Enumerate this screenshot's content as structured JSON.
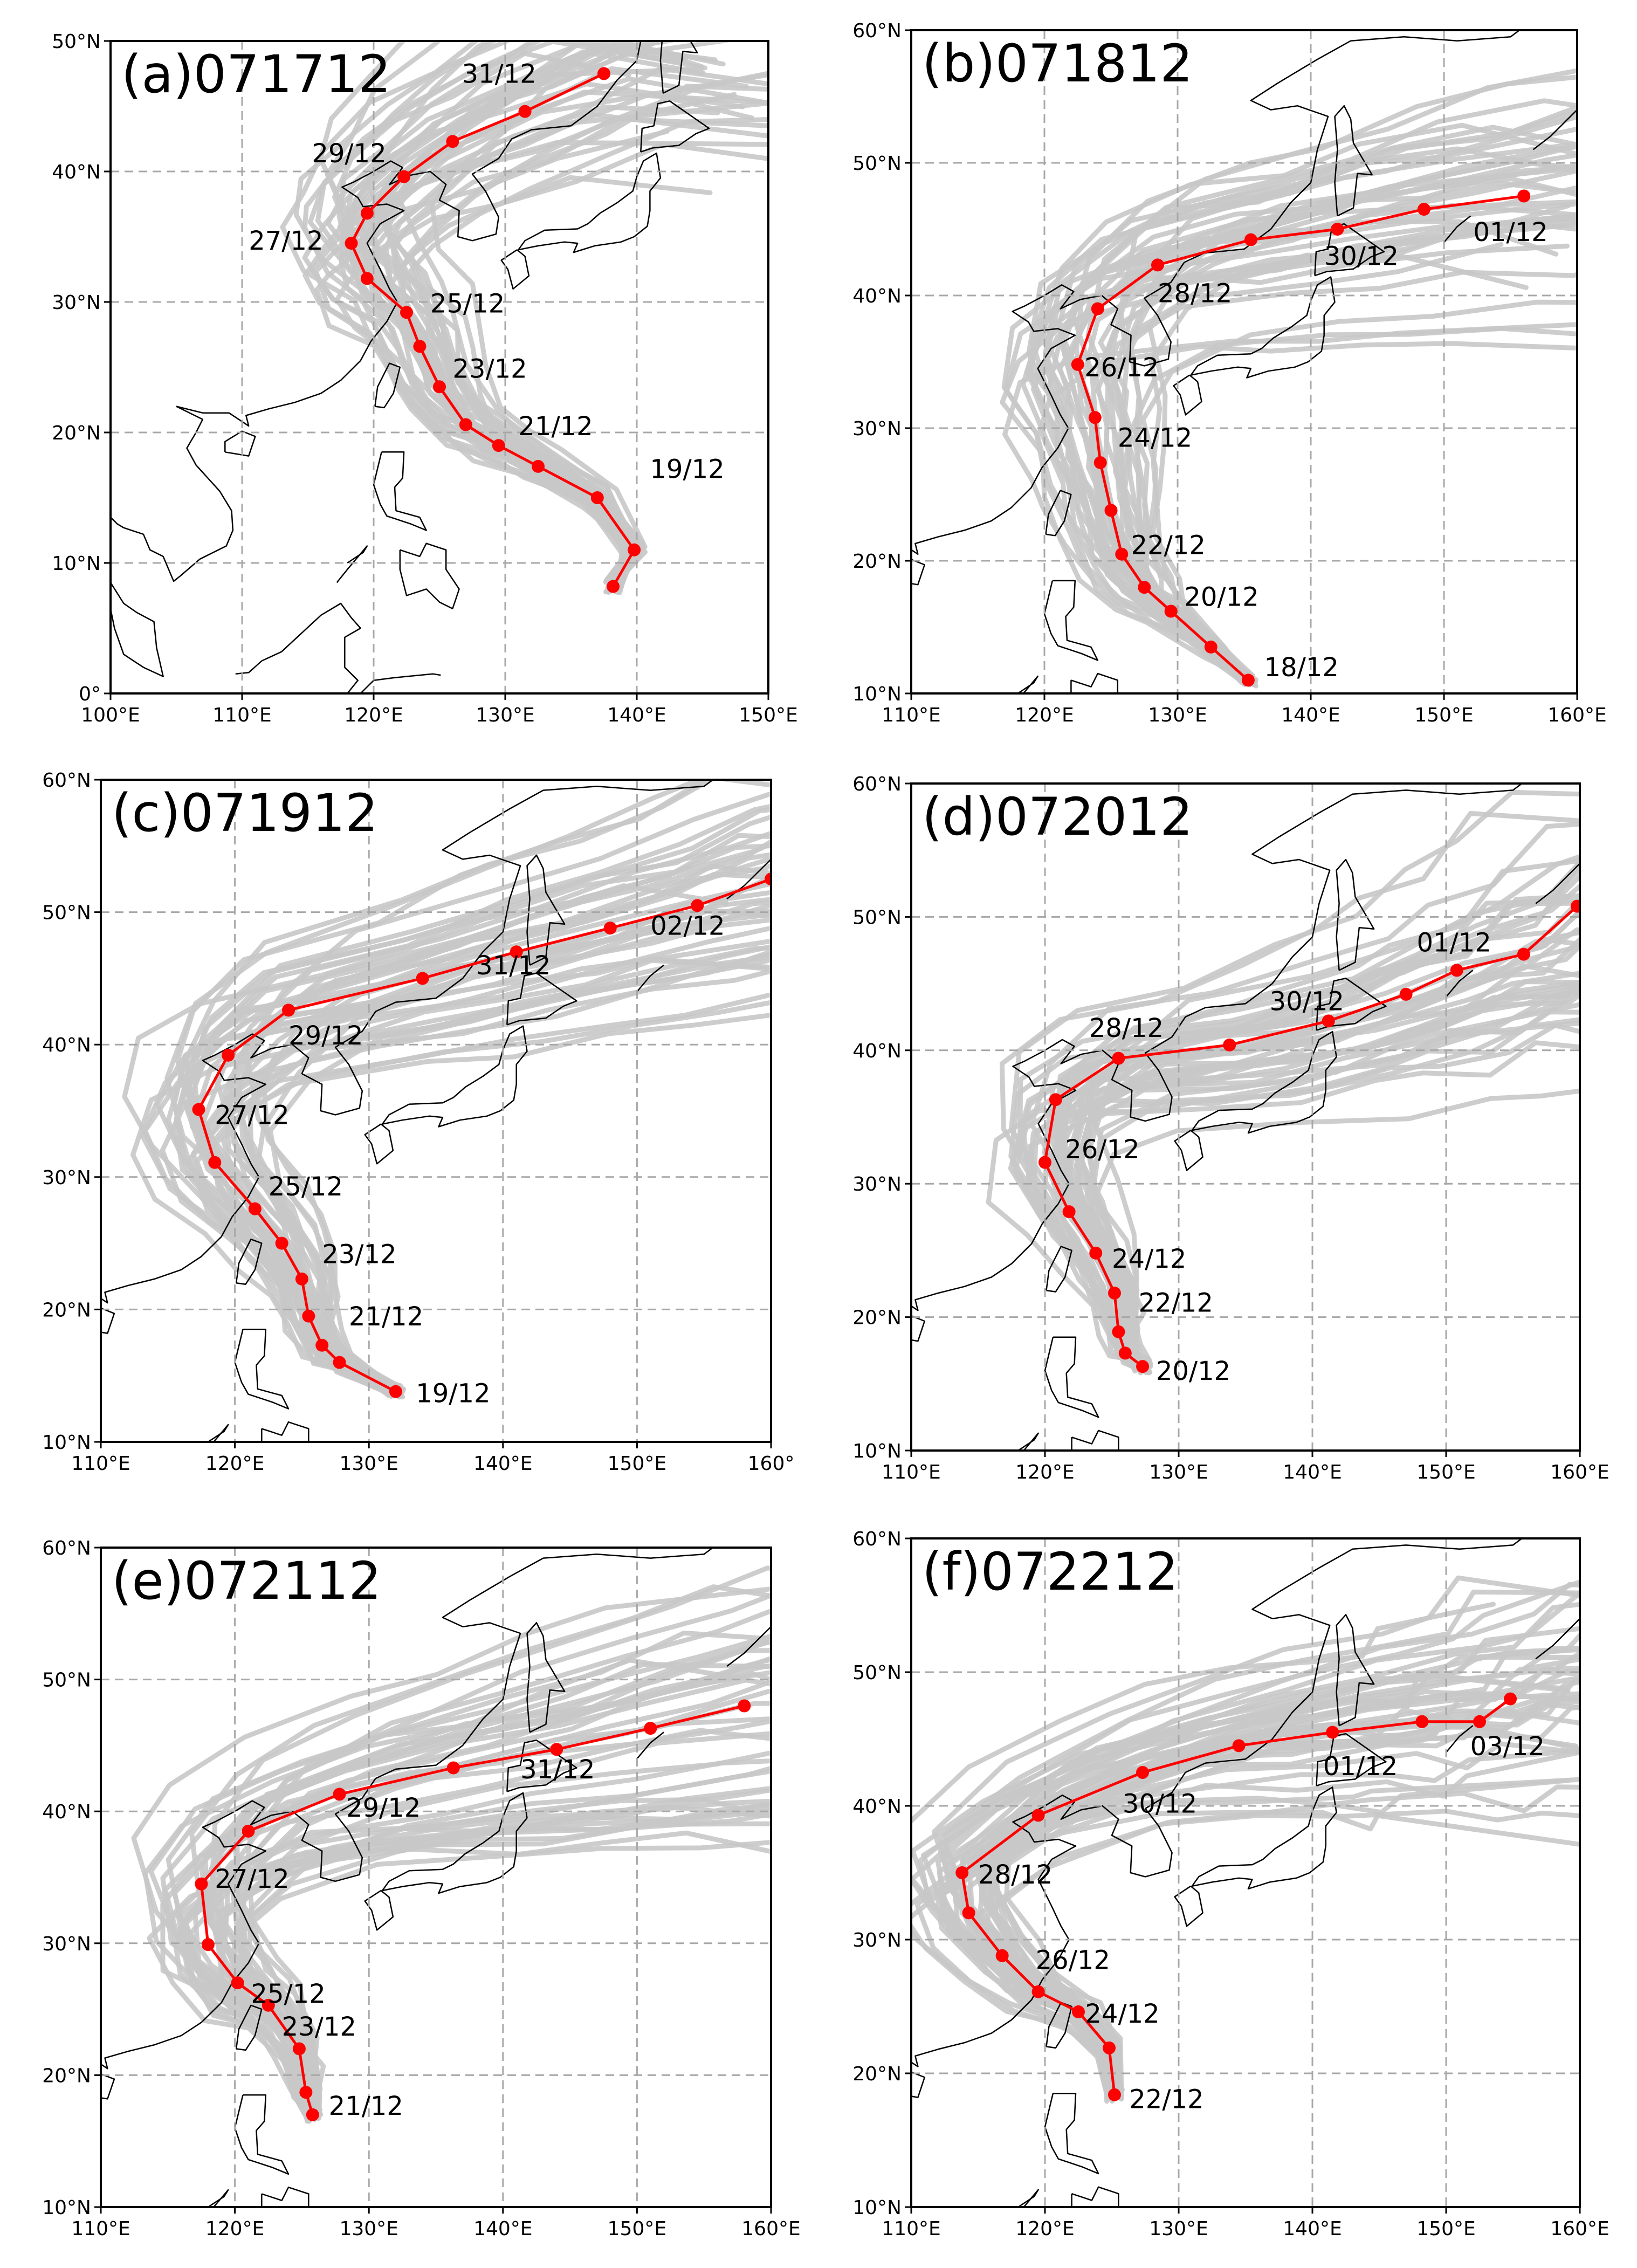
{
  "chart_data": [
    {
      "type": "line",
      "title": "(a)071712",
      "xlim": [
        100,
        150
      ],
      "ylim": [
        0,
        50
      ],
      "xticks": [
        100,
        110,
        120,
        130,
        140,
        150
      ],
      "yticks": [
        0,
        10,
        20,
        30,
        40,
        50
      ],
      "xtick_labels": [
        "100°E",
        "110°E",
        "120°E",
        "130°E",
        "140°E",
        "150°E"
      ],
      "ytick_labels": [
        "0°",
        "10°N",
        "20°N",
        "30°N",
        "40°N",
        "50°N"
      ],
      "grid": true,
      "track": {
        "lon": [
          138.2,
          139.8,
          137.0,
          132.5,
          129.5,
          127.0,
          125.0,
          123.5,
          122.5,
          119.5,
          118.3,
          119.5,
          122.3,
          126.0,
          131.5,
          137.5
        ],
        "lat": [
          8.2,
          11.0,
          15.0,
          17.4,
          19.0,
          20.6,
          23.5,
          26.6,
          29.2,
          31.8,
          34.5,
          36.8,
          39.6,
          42.3,
          44.6,
          47.5
        ]
      },
      "date_labels": [
        {
          "text": "19/12",
          "lon": 141,
          "lat": 16.5
        },
        {
          "text": "21/12",
          "lon": 131,
          "lat": 19.8
        },
        {
          "text": "23/12",
          "lon": 126,
          "lat": 24.2
        },
        {
          "text": "25/12",
          "lon": 124.3,
          "lat": 29.2
        },
        {
          "text": "27/12",
          "lon": 110.5,
          "lat": 34.0
        },
        {
          "text": "29/12",
          "lon": 115.3,
          "lat": 40.7
        },
        {
          "text": "31/12",
          "lon": 126.7,
          "lat": 46.8
        }
      ]
    },
    {
      "type": "line",
      "title": "(b)071812",
      "xlim": [
        110,
        160
      ],
      "ylim": [
        10,
        60
      ],
      "xticks": [
        110,
        120,
        130,
        140,
        150,
        160
      ],
      "yticks": [
        10,
        20,
        30,
        40,
        50,
        60
      ],
      "xtick_labels": [
        "110°E",
        "120°E",
        "130°E",
        "140°E",
        "150°E",
        "160°E"
      ],
      "ytick_labels": [
        "10°N",
        "20°N",
        "30°N",
        "40°N",
        "50°N",
        "60°N"
      ],
      "grid": true,
      "track": {
        "lon": [
          135.3,
          132.5,
          129.5,
          127.5,
          125.8,
          125.0,
          124.2,
          123.8,
          122.5,
          124.0,
          128.5,
          135.5,
          142.0,
          148.5,
          156.0
        ],
        "lat": [
          11.0,
          13.5,
          16.2,
          18.0,
          20.5,
          23.8,
          27.4,
          30.8,
          34.8,
          39.0,
          42.3,
          44.2,
          45.0,
          46.5,
          47.5
        ]
      },
      "date_labels": [
        {
          "text": "18/12",
          "lon": 136.5,
          "lat": 11.3
        },
        {
          "text": "20/12",
          "lon": 130.5,
          "lat": 16.6
        },
        {
          "text": "22/12",
          "lon": 126.5,
          "lat": 20.5
        },
        {
          "text": "24/12",
          "lon": 125.5,
          "lat": 28.6
        },
        {
          "text": "26/12",
          "lon": 123,
          "lat": 33.9
        },
        {
          "text": "28/12",
          "lon": 128.5,
          "lat": 39.5
        },
        {
          "text": "30/12",
          "lon": 141,
          "lat": 42.3
        },
        {
          "text": "01/12",
          "lon": 152.2,
          "lat": 44.1
        }
      ]
    },
    {
      "type": "line",
      "title": "(c)071912",
      "xlim": [
        110,
        160
      ],
      "ylim": [
        10,
        60
      ],
      "xticks": [
        110,
        120,
        130,
        140,
        150,
        160
      ],
      "yticks": [
        10,
        20,
        30,
        40,
        50,
        60
      ],
      "xtick_labels": [
        "110°E",
        "120°E",
        "130°E",
        "140°E",
        "150°E",
        "160°"
      ],
      "ytick_labels": [
        "10°N",
        "20°N",
        "30°N",
        "40°N",
        "50°N",
        "60°N"
      ],
      "grid": true,
      "track": {
        "lon": [
          132.0,
          127.8,
          126.5,
          125.5,
          125.0,
          123.5,
          121.5,
          118.5,
          117.3,
          119.5,
          124.0,
          134.0,
          141.0,
          148.0,
          154.5,
          160.0
        ],
        "lat": [
          13.8,
          16.0,
          17.3,
          19.5,
          22.3,
          25.0,
          27.6,
          31.1,
          35.1,
          39.2,
          42.6,
          45.0,
          47.0,
          48.8,
          50.5,
          52.5
        ]
      },
      "date_labels": [
        {
          "text": "19/12",
          "lon": 133.5,
          "lat": 13.0
        },
        {
          "text": "21/12",
          "lon": 128.5,
          "lat": 18.8
        },
        {
          "text": "23/12",
          "lon": 126.5,
          "lat": 23.5
        },
        {
          "text": "25/12",
          "lon": 122.5,
          "lat": 28.6
        },
        {
          "text": "27/12",
          "lon": 118.5,
          "lat": 34.0
        },
        {
          "text": "29/12",
          "lon": 124,
          "lat": 40.0
        },
        {
          "text": "31/12",
          "lon": 138,
          "lat": 45.3
        },
        {
          "text": "02/12",
          "lon": 151,
          "lat": 48.3
        }
      ]
    },
    {
      "type": "line",
      "title": "(d)072012",
      "xlim": [
        110,
        160
      ],
      "ylim": [
        10,
        60
      ],
      "xticks": [
        110,
        120,
        130,
        140,
        150,
        160
      ],
      "yticks": [
        10,
        20,
        30,
        40,
        50,
        60
      ],
      "xtick_labels": [
        "110°E",
        "120°E",
        "130°E",
        "140°E",
        "150°E",
        "160°E"
      ],
      "ytick_labels": [
        "10°N",
        "20°N",
        "30°N",
        "40°N",
        "50°N",
        "60°N"
      ],
      "grid": true,
      "track": {
        "lon": [
          127.3,
          126.0,
          125.5,
          125.2,
          123.8,
          121.8,
          120.0,
          120.8,
          125.5,
          133.8,
          141.2,
          147.0,
          150.8,
          155.8,
          159.8
        ],
        "lat": [
          16.3,
          17.3,
          18.9,
          21.8,
          24.8,
          27.9,
          31.6,
          36.3,
          39.4,
          40.4,
          42.2,
          44.2,
          46.0,
          47.2,
          50.8
        ]
      },
      "date_labels": [
        {
          "text": "20/12",
          "lon": 128.3,
          "lat": 15.3
        },
        {
          "text": "22/12",
          "lon": 127,
          "lat": 20.4
        },
        {
          "text": "24/12",
          "lon": 125,
          "lat": 23.7
        },
        {
          "text": "26/12",
          "lon": 121.5,
          "lat": 31.9
        },
        {
          "text": "28/12",
          "lon": 123.3,
          "lat": 41.0
        },
        {
          "text": "30/12",
          "lon": 136.8,
          "lat": 43.0
        },
        {
          "text": "01/12",
          "lon": 147.8,
          "lat": 47.4
        }
      ]
    },
    {
      "type": "line",
      "title": "(e)072112",
      "xlim": [
        110,
        160
      ],
      "ylim": [
        10,
        60
      ],
      "xticks": [
        110,
        120,
        130,
        140,
        150,
        160
      ],
      "yticks": [
        10,
        20,
        30,
        40,
        50,
        60
      ],
      "xtick_labels": [
        "110°E",
        "120°E",
        "130°E",
        "140°E",
        "150°E",
        "160°E"
      ],
      "ytick_labels": [
        "10°N",
        "20°N",
        "30°N",
        "40°N",
        "50°N",
        "60°N"
      ],
      "grid": true,
      "track": {
        "lon": [
          125.8,
          125.3,
          124.8,
          122.5,
          120.2,
          118.0,
          117.5,
          121.0,
          127.8,
          136.3,
          144.0,
          151.0,
          158.0
        ],
        "lat": [
          17.0,
          18.7,
          22.0,
          25.3,
          27.0,
          29.9,
          34.5,
          38.5,
          41.3,
          43.3,
          44.7,
          46.3,
          48.0
        ]
      },
      "date_labels": [
        {
          "text": "21/12",
          "lon": 127,
          "lat": 17.0
        },
        {
          "text": "23/12",
          "lon": 123.5,
          "lat": 23.0
        },
        {
          "text": "25/12",
          "lon": 121.2,
          "lat": 25.5
        },
        {
          "text": "27/12",
          "lon": 118.5,
          "lat": 34.2
        },
        {
          "text": "29/12",
          "lon": 128.3,
          "lat": 39.6
        },
        {
          "text": "31/12",
          "lon": 141.3,
          "lat": 42.5
        }
      ]
    },
    {
      "type": "line",
      "title": "(f)072212",
      "xlim": [
        110,
        160
      ],
      "ylim": [
        10,
        60
      ],
      "xticks": [
        110,
        120,
        130,
        140,
        150,
        160
      ],
      "yticks": [
        10,
        20,
        30,
        40,
        50,
        60
      ],
      "xtick_labels": [
        "110°E",
        "120°E",
        "130°E",
        "140°E",
        "150°E",
        "160°E"
      ],
      "ytick_labels": [
        "10°N",
        "20°N",
        "30°N",
        "40°N",
        "50°N",
        "60°N"
      ],
      "grid": true,
      "track": {
        "lon": [
          125.2,
          124.8,
          122.5,
          119.5,
          116.8,
          114.3,
          113.8,
          119.5,
          127.3,
          134.5,
          141.5,
          148.2,
          152.5,
          154.8
        ],
        "lat": [
          18.4,
          21.9,
          24.6,
          26.1,
          28.8,
          32.0,
          35.0,
          39.3,
          42.5,
          44.5,
          45.5,
          46.3,
          46.3,
          48.0
        ]
      },
      "date_labels": [
        {
          "text": "22/12",
          "lon": 126.3,
          "lat": 17.4
        },
        {
          "text": "24/12",
          "lon": 123,
          "lat": 23.8
        },
        {
          "text": "26/12",
          "lon": 119.3,
          "lat": 27.8
        },
        {
          "text": "28/12",
          "lon": 115,
          "lat": 34.2
        },
        {
          "text": "30/12",
          "lon": 125.8,
          "lat": 39.5
        },
        {
          "text": "01/12",
          "lon": 140.8,
          "lat": 42.3
        },
        {
          "text": "03/12",
          "lon": 151.8,
          "lat": 43.8
        }
      ]
    }
  ],
  "colors": {
    "track": "#ff0000",
    "ensemble": "#c8c8c8",
    "grid": "#a8a8a8",
    "coast": "#000000"
  }
}
